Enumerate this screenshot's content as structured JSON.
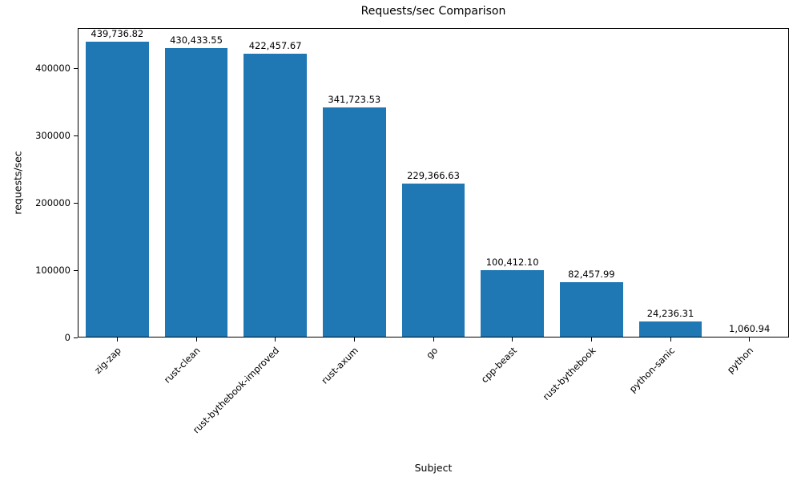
{
  "chart_data": {
    "type": "bar",
    "title": "Requests/sec Comparison",
    "xlabel": "Subject",
    "ylabel": "requests/sec",
    "categories": [
      "zig-zap",
      "rust-clean",
      "rust-bythebook-improved",
      "rust-axum",
      "go",
      "cpp-beast",
      "rust-bythebook",
      "python-sanic",
      "python"
    ],
    "values": [
      439736.82,
      430433.55,
      422457.67,
      341723.53,
      229366.63,
      100412.1,
      82457.99,
      24236.31,
      1060.94
    ],
    "value_labels": [
      "439,736.82",
      "430,433.55",
      "422,457.67",
      "341,723.53",
      "229,366.63",
      "100,412.10",
      "82,457.99",
      "24,236.31",
      "1,060.94"
    ],
    "ytick_labels": [
      "0",
      "100000",
      "200000",
      "300000",
      "400000"
    ],
    "yticks": [
      0,
      100000,
      200000,
      300000,
      400000
    ],
    "ylim": [
      0,
      460000
    ],
    "bar_color": "#1f77b4",
    "grid": false,
    "legend_position": "none"
  }
}
